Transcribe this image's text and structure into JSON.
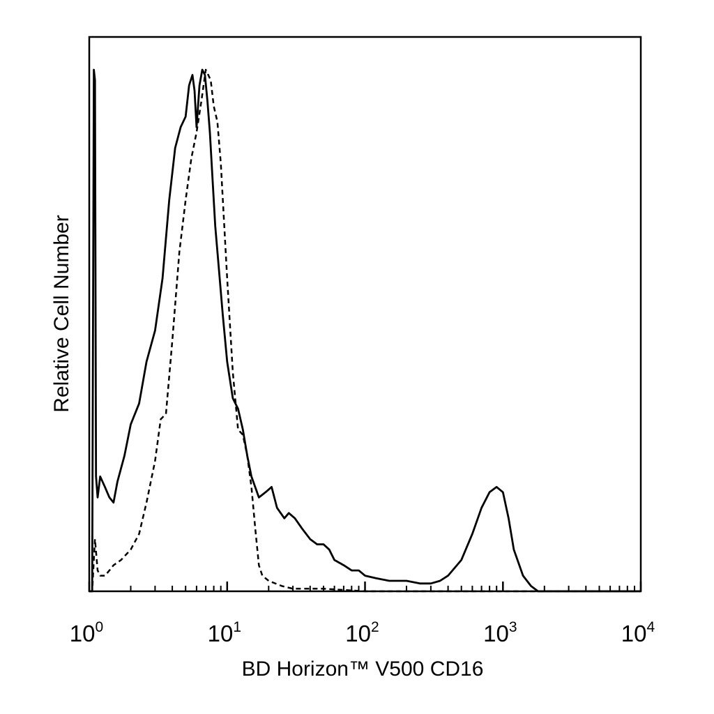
{
  "chart_data": {
    "type": "line",
    "xlabel": "BD Horizon™ V500 CD16",
    "ylabel": "Relative Cell Number",
    "x_scale": "log",
    "xlim": [
      1,
      10000
    ],
    "y_units": "relative (0 = baseline, 1 = tallest peak)",
    "ylim": [
      0,
      1
    ],
    "grid": false,
    "x_ticks": [
      {
        "value": 1,
        "base": "10",
        "exp": "0"
      },
      {
        "value": 10,
        "base": "10",
        "exp": "1"
      },
      {
        "value": 100,
        "base": "10",
        "exp": "2"
      },
      {
        "value": 1000,
        "base": "10",
        "exp": "3"
      },
      {
        "value": 10000,
        "base": "10",
        "exp": "4"
      }
    ],
    "series": [
      {
        "style": "solid",
        "x": [
          1.0,
          1.05,
          1.08,
          1.1,
          1.12,
          1.15,
          1.2,
          1.3,
          1.4,
          1.5,
          1.6,
          1.8,
          2.0,
          2.3,
          2.6,
          3.0,
          3.4,
          3.8,
          4.2,
          4.6,
          5.0,
          5.3,
          5.6,
          5.8,
          6.0,
          6.3,
          6.6,
          6.9,
          7.2,
          7.5,
          7.8,
          8.2,
          8.7,
          9.3,
          10,
          11,
          12,
          13,
          14,
          15,
          17,
          19,
          21,
          23,
          26,
          28,
          31,
          35,
          40,
          45,
          50,
          55,
          60,
          70,
          80,
          90,
          100,
          120,
          150,
          200,
          250,
          300,
          350,
          400,
          500,
          600,
          700,
          800,
          900,
          1000,
          1100,
          1200,
          1400,
          1600,
          1800,
          2000,
          2500,
          3000,
          5000,
          10000
        ],
        "y": [
          0.0,
          0.0,
          1.0,
          0.98,
          0.22,
          0.18,
          0.22,
          0.2,
          0.18,
          0.17,
          0.21,
          0.26,
          0.32,
          0.36,
          0.44,
          0.5,
          0.6,
          0.75,
          0.85,
          0.89,
          0.91,
          0.97,
          0.99,
          0.96,
          0.89,
          0.97,
          1.0,
          0.99,
          0.94,
          0.88,
          0.8,
          0.7,
          0.62,
          0.53,
          0.44,
          0.37,
          0.35,
          0.31,
          0.26,
          0.22,
          0.18,
          0.19,
          0.2,
          0.16,
          0.14,
          0.15,
          0.14,
          0.12,
          0.1,
          0.09,
          0.09,
          0.08,
          0.06,
          0.05,
          0.04,
          0.04,
          0.03,
          0.025,
          0.02,
          0.02,
          0.015,
          0.015,
          0.02,
          0.03,
          0.06,
          0.11,
          0.16,
          0.19,
          0.2,
          0.19,
          0.14,
          0.08,
          0.03,
          0.01,
          0.0,
          0.0,
          0.0,
          0.0,
          0.0,
          0.0
        ]
      },
      {
        "style": "dashed",
        "x": [
          1.0,
          1.05,
          1.1,
          1.15,
          1.2,
          1.3,
          1.4,
          1.5,
          1.7,
          2.0,
          2.3,
          2.6,
          3.0,
          3.3,
          3.6,
          4.0,
          4.5,
          5.0,
          5.5,
          6.0,
          6.5,
          7.0,
          7.3,
          7.6,
          8.0,
          8.5,
          9.0,
          10,
          11,
          12,
          13,
          14,
          15,
          16,
          17,
          18,
          20,
          25,
          30,
          50,
          100,
          200,
          1000,
          2000,
          5000,
          10000
        ],
        "y": [
          0.0,
          0.0,
          0.1,
          0.04,
          0.03,
          0.03,
          0.04,
          0.05,
          0.06,
          0.08,
          0.11,
          0.17,
          0.25,
          0.33,
          0.34,
          0.48,
          0.65,
          0.75,
          0.83,
          0.88,
          0.94,
          1.0,
          0.99,
          0.98,
          0.93,
          0.9,
          0.82,
          0.6,
          0.42,
          0.31,
          0.3,
          0.26,
          0.2,
          0.12,
          0.05,
          0.03,
          0.02,
          0.01,
          0.005,
          0.005,
          0.0,
          0.0,
          0.0,
          0.0,
          0.0,
          0.0
        ]
      }
    ]
  }
}
